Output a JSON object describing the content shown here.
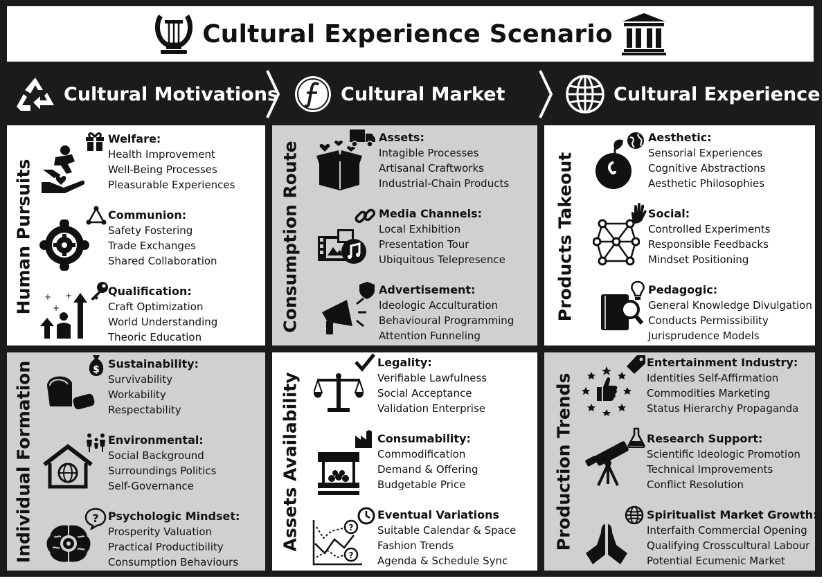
{
  "title": "Cultural Experience Scenario",
  "header": [
    {
      "label": "Cultural Motivations",
      "icon": "recycle-icon"
    },
    {
      "label": "Cultural Market",
      "icon": "florin-coin-icon"
    },
    {
      "label": "Cultural Experience",
      "icon": "globe-icon"
    }
  ],
  "panels": [
    {
      "side": "Human Pursuits",
      "items": [
        {
          "title": "Welfare",
          "lines": [
            "Health Improvement",
            "Well-Being Processes",
            "Pleasurable Experiences"
          ]
        },
        {
          "title": "Communion",
          "lines": [
            "Safety Fostering",
            "Trade Exchanges",
            "Shared Collaboration"
          ]
        },
        {
          "title": "Qualification",
          "lines": [
            "Craft Optimization",
            "World Understanding",
            "Theoric Education"
          ]
        }
      ]
    },
    {
      "side": "Consumption Route",
      "items": [
        {
          "title": "Assets",
          "lines": [
            "Intagible Processes",
            "Artisanal Craftworks",
            "Industrial-Chain Products"
          ]
        },
        {
          "title": "Media Channels",
          "lines": [
            "Local Exhibition",
            "Presentation Tour",
            "Ubiquitous Telepresence"
          ]
        },
        {
          "title": "Advertisement",
          "lines": [
            "Ideologic Acculturation",
            "Behavioural Programming",
            "Attention Funneling"
          ]
        }
      ]
    },
    {
      "side": "Products Takeout",
      "items": [
        {
          "title": "Aesthetic",
          "lines": [
            "Sensorial Experiences",
            "Cognitive Abstractions",
            "Aesthetic Philosophies"
          ]
        },
        {
          "title": "Social",
          "lines": [
            "Controlled Experiments",
            "Responsible Feedbacks",
            "Mindset Positioning"
          ]
        },
        {
          "title": "Pedagogic",
          "lines": [
            "General Knowledge Divulgation",
            "Conducts Permissibility",
            "Jurisprudence Models"
          ]
        }
      ]
    },
    {
      "side": "Individual Formation",
      "items": [
        {
          "title": "Sustainability",
          "lines": [
            "Survivability",
            "Workability",
            "Respectability"
          ]
        },
        {
          "title": "Environmental",
          "lines": [
            "Social Background",
            "Surroundings Politics",
            "Self-Governance"
          ]
        },
        {
          "title": "Psychologic Mindset",
          "lines": [
            "Prosperity Valuation",
            "Practical Productibility",
            "Consumption Behaviours"
          ]
        }
      ]
    },
    {
      "side": "Assets Availability",
      "items": [
        {
          "title": "Legality",
          "lines": [
            "Verifiable Lawfulness",
            "Social Acceptance",
            "Validation Enterprise"
          ]
        },
        {
          "title": "Consumability",
          "lines": [
            "Commodification",
            "Demand & Offering",
            "Budgetable Price"
          ]
        },
        {
          "title": "Eventual Variations",
          "lines": [
            "Suitable Calendar & Space",
            "Fashion Trends",
            "Agenda & Schedule Sync"
          ]
        }
      ]
    },
    {
      "side": "Production Trends",
      "items": [
        {
          "title": "Entertainment Industry",
          "lines": [
            "Identities Self-Affirmation",
            "Commodities Marketing",
            "Status Hierarchy Propaganda"
          ]
        },
        {
          "title": "Research Support",
          "lines": [
            "Scientific Ideologic Promotion",
            "Technical Improvements",
            "Conflict Resolution"
          ]
        },
        {
          "title": "Spiritualist Market Growth",
          "lines": [
            "Interfaith Commercial Opening",
            "Qualifying Crosscultural Labour",
            "Potential Ecumenic Market"
          ]
        }
      ]
    }
  ]
}
